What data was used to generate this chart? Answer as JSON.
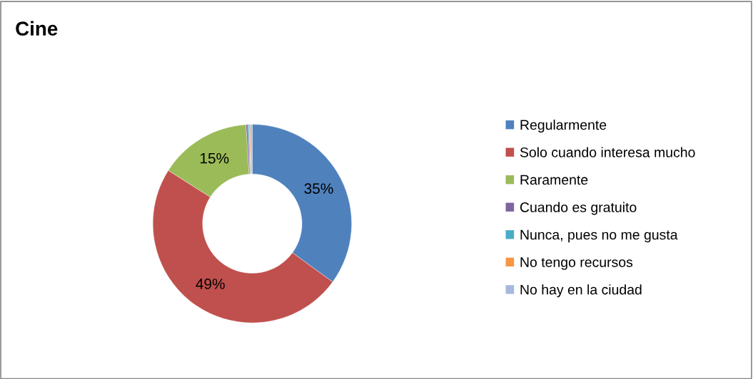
{
  "chart_data": {
    "type": "donut",
    "title": "Cine",
    "categories": [
      "Regularmente",
      "Solo cuando interesa mucho",
      "Raramente",
      "Cuando es gratuito",
      "Nunca, pues no me gusta",
      "No tengo recursos",
      "No hay en la ciudad"
    ],
    "values": [
      35,
      49,
      15,
      0.3,
      0.2,
      0.2,
      0.3
    ],
    "colors": [
      "#4f81bd",
      "#c0504d",
      "#9bbb59",
      "#8064a2",
      "#4bacc6",
      "#f79646",
      "#a6b9dc"
    ],
    "value_labels": [
      "35%",
      "49%",
      "15%",
      null,
      null,
      null,
      null
    ],
    "legend": "right"
  }
}
